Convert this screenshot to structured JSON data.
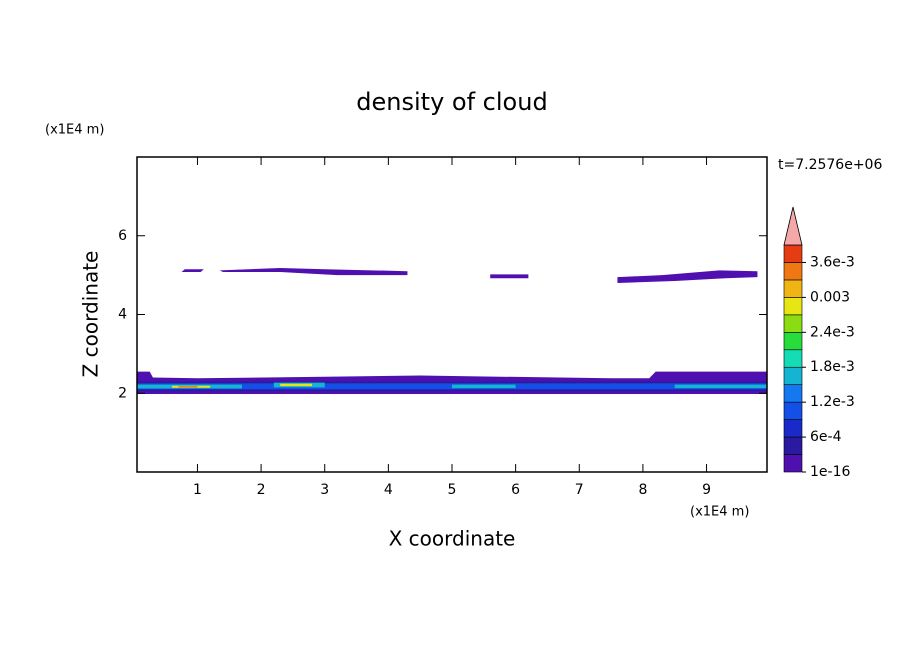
{
  "chart_data": {
    "type": "contour",
    "title": "density of cloud",
    "x_label": "X coordinate",
    "y_label": "Z coordinate",
    "x_unit": "(x1E4 m)",
    "y_unit": "(x1E4 m)",
    "annotation": "t=7.2576e+06",
    "xlim": [
      0.05,
      9.95
    ],
    "xticks": [
      1,
      2,
      3,
      4,
      5,
      6,
      7,
      8,
      9
    ],
    "ylim": [
      0,
      8
    ],
    "yticks": [
      2,
      4,
      6
    ],
    "levels": [
      1e-16,
      0.0003,
      0.0006,
      0.0009,
      0.0012,
      0.0015,
      0.0018,
      0.0021,
      0.0024,
      0.0027,
      0.003,
      0.0033,
      0.0036,
      0.0039
    ],
    "colors": [
      "#5010b0",
      "#2a1aa0",
      "#1a2ac8",
      "#1450e6",
      "#1478f0",
      "#14b4d2",
      "#14dcb4",
      "#28dc3c",
      "#8cdc14",
      "#e6e614",
      "#f0b414",
      "#f07814",
      "#e63c14"
    ],
    "extend_color": "#f4a8a8",
    "cbticks": [
      1e-16,
      {
        "value": 0.0006,
        "label": "6e-4"
      },
      {
        "value": 0.0012,
        "label": "1.2e-3"
      },
      {
        "value": 0.0018,
        "label": "1.8e-3"
      },
      {
        "value": 0.0024,
        "label": "2.4e-3"
      },
      0.003,
      {
        "value": 0.0036,
        "label": "3.6e-3"
      }
    ],
    "regions": [
      {
        "value": 0.0001,
        "x": [
          0.75,
          1.05,
          1.1,
          0.8
        ],
        "z": [
          5.08,
          5.08,
          5.15,
          5.15
        ]
      },
      {
        "value": 0.0001,
        "x": [
          1.35,
          2.3,
          3.0,
          4.3,
          4.3,
          3.2,
          2.3,
          1.4
        ],
        "z": [
          5.12,
          5.18,
          5.15,
          5.1,
          5.0,
          5.0,
          5.08,
          5.08
        ]
      },
      {
        "value": 0.0001,
        "x": [
          5.6,
          6.2,
          6.2,
          5.6
        ],
        "z": [
          4.92,
          4.92,
          5.02,
          5.02
        ]
      },
      {
        "value": 0.0001,
        "x": [
          7.6,
          8.5,
          9.3,
          9.8,
          9.8,
          9.2,
          8.3,
          7.6
        ],
        "z": [
          4.8,
          4.85,
          4.92,
          4.95,
          5.1,
          5.12,
          5.0,
          4.95
        ]
      },
      {
        "value": 0.0001,
        "x": [
          0.05,
          9.95,
          9.95,
          8.2,
          8.1,
          7.5,
          4.5,
          3.0,
          1.0,
          0.3,
          0.25,
          0.05
        ],
        "z": [
          1.98,
          1.98,
          2.55,
          2.55,
          2.38,
          2.38,
          2.45,
          2.42,
          2.38,
          2.4,
          2.55,
          2.55
        ]
      },
      {
        "value": 0.0004,
        "x": [
          0.05,
          9.95,
          9.95,
          0.05
        ],
        "z": [
          2.05,
          2.05,
          2.3,
          2.3
        ]
      },
      {
        "value": 0.0009,
        "x": [
          0.05,
          9.95,
          9.95,
          0.05
        ],
        "z": [
          2.1,
          2.1,
          2.25,
          2.25
        ]
      },
      {
        "value": 0.0016,
        "x": [
          0.05,
          1.7,
          1.7,
          0.05
        ],
        "z": [
          2.12,
          2.12,
          2.22,
          2.22
        ]
      },
      {
        "value": 0.0016,
        "x": [
          2.2,
          3.0,
          3.0,
          2.2
        ],
        "z": [
          2.15,
          2.15,
          2.27,
          2.27
        ]
      },
      {
        "value": 0.0016,
        "x": [
          5.0,
          6.0,
          6.0,
          5.0
        ],
        "z": [
          2.13,
          2.13,
          2.22,
          2.22
        ]
      },
      {
        "value": 0.0016,
        "x": [
          8.5,
          9.95,
          9.95,
          8.5
        ],
        "z": [
          2.13,
          2.13,
          2.22,
          2.22
        ]
      },
      {
        "value": 0.0029,
        "x": [
          0.6,
          1.2,
          1.2,
          0.6
        ],
        "z": [
          2.14,
          2.14,
          2.19,
          2.19
        ]
      },
      {
        "value": 0.0029,
        "x": [
          2.3,
          2.8,
          2.8,
          2.3
        ],
        "z": [
          2.18,
          2.18,
          2.24,
          2.24
        ]
      },
      {
        "value": 0.0033,
        "x": [
          0.7,
          1.0,
          1.0,
          0.7
        ],
        "z": [
          2.15,
          2.15,
          2.18,
          2.18
        ]
      }
    ]
  }
}
